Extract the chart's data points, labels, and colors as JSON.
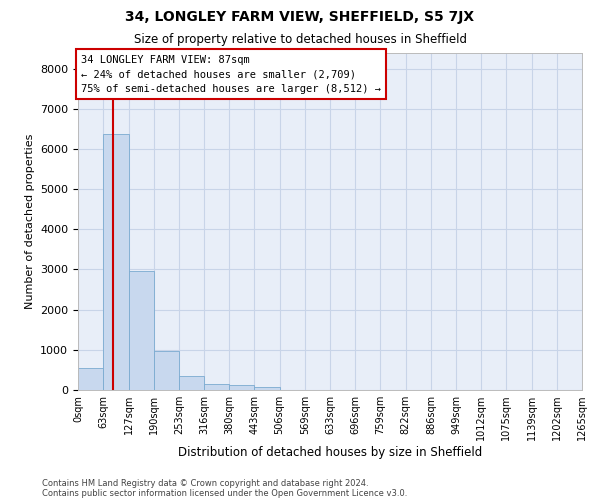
{
  "title1": "34, LONGLEY FARM VIEW, SHEFFIELD, S5 7JX",
  "title2": "Size of property relative to detached houses in Sheffield",
  "xlabel": "Distribution of detached houses by size in Sheffield",
  "ylabel": "Number of detached properties",
  "footer1": "Contains HM Land Registry data © Crown copyright and database right 2024.",
  "footer2": "Contains public sector information licensed under the Open Government Licence v3.0.",
  "annotation_title": "34 LONGLEY FARM VIEW: 87sqm",
  "annotation_line1": "← 24% of detached houses are smaller (2,709)",
  "annotation_line2": "75% of semi-detached houses are larger (8,512) →",
  "property_size": 87,
  "bin_edges": [
    0,
    63,
    127,
    190,
    253,
    316,
    380,
    443,
    506,
    569,
    633,
    696,
    759,
    822,
    886,
    949,
    1012,
    1075,
    1139,
    1202,
    1265
  ],
  "bin_labels": [
    "0sqm",
    "63sqm",
    "127sqm",
    "190sqm",
    "253sqm",
    "316sqm",
    "380sqm",
    "443sqm",
    "506sqm",
    "569sqm",
    "633sqm",
    "696sqm",
    "759sqm",
    "822sqm",
    "886sqm",
    "949sqm",
    "1012sqm",
    "1075sqm",
    "1139sqm",
    "1202sqm",
    "1265sqm"
  ],
  "bar_values": [
    550,
    6380,
    2950,
    960,
    340,
    160,
    115,
    70,
    0,
    0,
    0,
    0,
    0,
    0,
    0,
    0,
    0,
    0,
    0,
    0
  ],
  "bar_color": "#c8d8ee",
  "bar_edge_color": "#7aaad0",
  "grid_color": "#c8d4e8",
  "background_color": "#e8eef8",
  "vline_color": "#cc0000",
  "box_edge_color": "#cc0000",
  "ylim": [
    0,
    8400
  ],
  "yticks": [
    0,
    1000,
    2000,
    3000,
    4000,
    5000,
    6000,
    7000,
    8000
  ]
}
